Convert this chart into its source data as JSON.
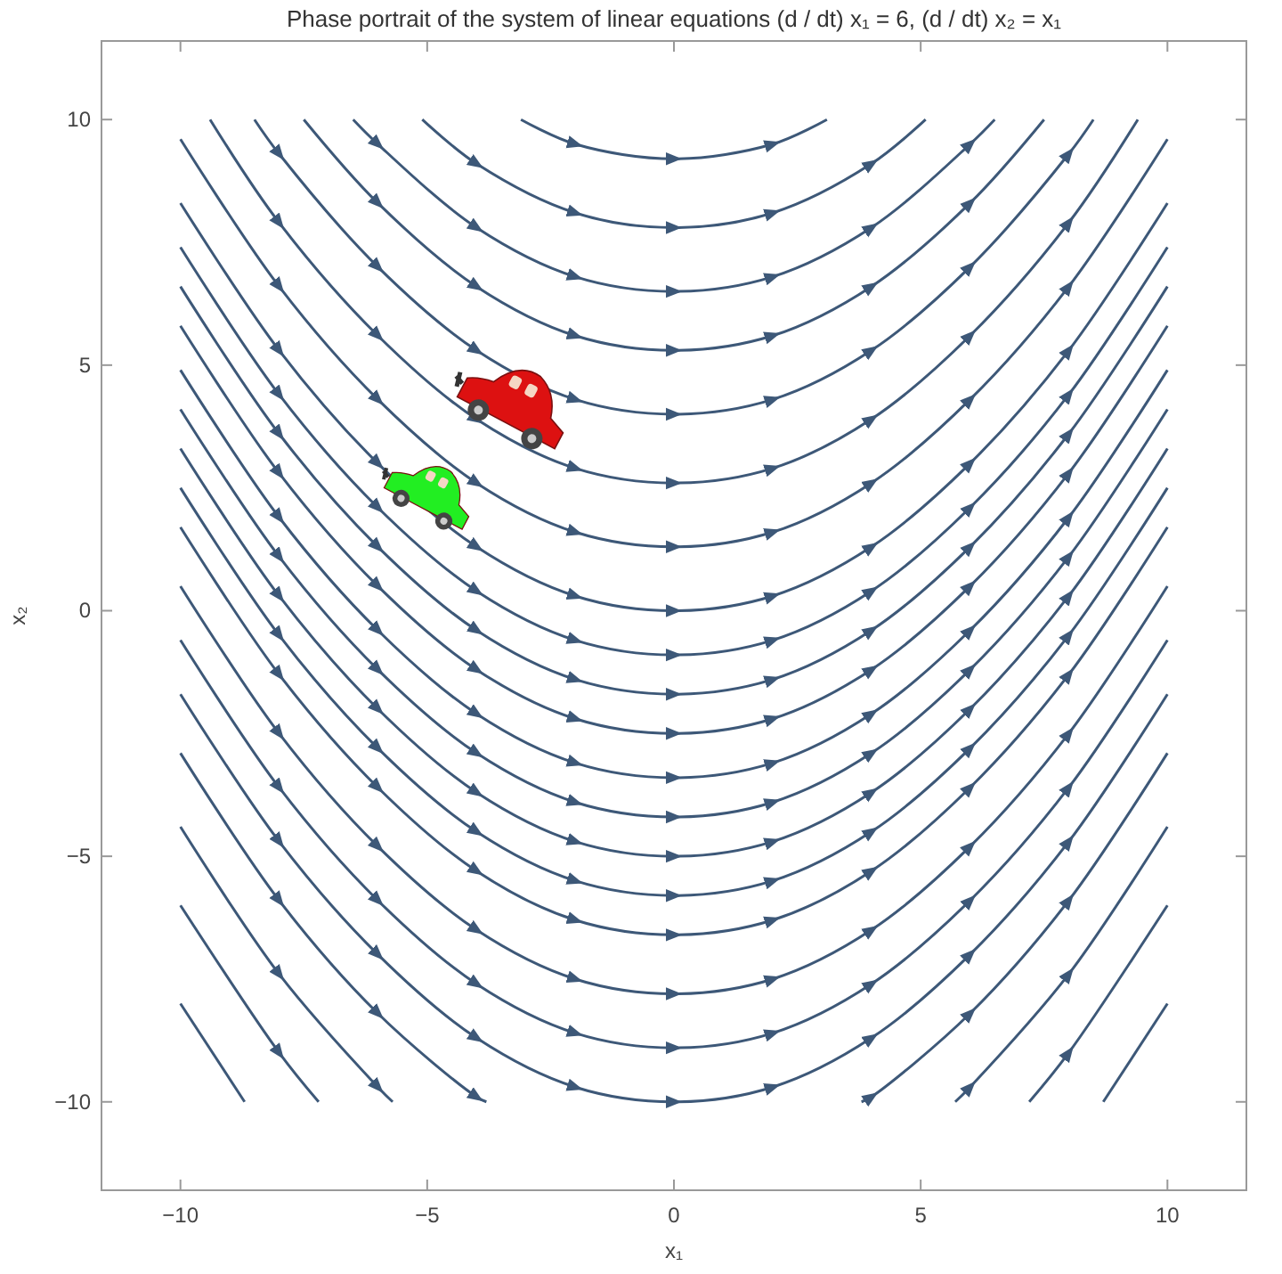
{
  "chart_data": {
    "type": "line",
    "title": "Phase portrait of the system of linear equations (d / dt) x₁ = 6, (d / dt) x₂ = x₁",
    "xlabel": "x₁",
    "ylabel": "x₂",
    "xlim": [
      -11.6,
      11.6
    ],
    "ylim": [
      -11.8,
      11.6
    ],
    "xticks": [
      -10,
      -5,
      0,
      5,
      10
    ],
    "yticks": [
      -10,
      -5,
      0,
      5,
      10
    ],
    "series": [
      {
        "color": "#3d5878",
        "x": [
          -3.1,
          -2,
          0,
          2,
          3.1
        ],
        "values": [
          10,
          9.5,
          9.2,
          9.5,
          10
        ]
      },
      {
        "color": "#3d5878",
        "x": [
          -5.1,
          -4,
          -2,
          0,
          2,
          4,
          5.1
        ],
        "values": [
          10,
          9.1,
          8.1,
          7.8,
          8.1,
          9.1,
          10
        ]
      },
      {
        "color": "#3d5878",
        "x": [
          -6.5,
          -6,
          -4,
          -2,
          0,
          2,
          4,
          6,
          6.5
        ],
        "values": [
          10,
          9.5,
          7.8,
          6.8,
          6.5,
          6.8,
          7.8,
          9.5,
          10
        ]
      },
      {
        "color": "#3d5878",
        "x": [
          -7.5,
          -6,
          -4,
          -2,
          0,
          2,
          4,
          6,
          7.5
        ],
        "values": [
          10,
          8.3,
          6.6,
          5.6,
          5.3,
          5.6,
          6.6,
          8.3,
          10
        ]
      },
      {
        "color": "#3d5878",
        "x": [
          -8.5,
          -8,
          -6,
          -4,
          -2,
          0,
          2,
          4,
          6,
          8,
          8.5
        ],
        "values": [
          10,
          9.3,
          7,
          5.3,
          4.3,
          4,
          4.3,
          5.3,
          7,
          9.3,
          10
        ]
      },
      {
        "color": "#3d5878",
        "x": [
          -9.4,
          -8,
          -6,
          -4,
          -2,
          0,
          2,
          4,
          6,
          8,
          9.4
        ],
        "values": [
          10,
          7.9,
          5.6,
          3.9,
          2.9,
          2.6,
          2.9,
          3.9,
          5.6,
          7.9,
          10
        ]
      },
      {
        "color": "#3d5878",
        "x": [
          -10,
          -8,
          -6,
          -4,
          -2,
          0,
          2,
          4,
          6,
          8,
          10
        ],
        "values": [
          9.6,
          6.6,
          4.3,
          2.6,
          1.6,
          1.3,
          1.6,
          2.6,
          4.3,
          6.6,
          9.6
        ]
      },
      {
        "color": "#3d5878",
        "x": [
          -10,
          -8,
          -6,
          -4,
          -2,
          0,
          2,
          4,
          6,
          8,
          10
        ],
        "values": [
          8.3,
          5.3,
          3,
          1.3,
          0.3,
          0,
          0.3,
          1.3,
          3,
          5.3,
          8.3
        ]
      },
      {
        "color": "#3d5878",
        "x": [
          -10,
          -8,
          -6,
          -4,
          -2,
          0,
          2,
          4,
          6,
          8,
          10
        ],
        "values": [
          7.4,
          4.4,
          2.1,
          0.4,
          -0.6,
          -0.9,
          -0.6,
          0.4,
          2.1,
          4.4,
          7.4
        ]
      },
      {
        "color": "#3d5878",
        "x": [
          -10,
          -8,
          -6,
          -4,
          -2,
          0,
          2,
          4,
          6,
          8,
          10
        ],
        "values": [
          6.6,
          3.6,
          1.3,
          -0.4,
          -1.4,
          -1.7,
          -1.4,
          -0.4,
          1.3,
          3.6,
          6.6
        ]
      },
      {
        "color": "#3d5878",
        "x": [
          -10,
          -8,
          -6,
          -4,
          -2,
          0,
          2,
          4,
          6,
          8,
          10
        ],
        "values": [
          5.8,
          2.8,
          0.5,
          -1.2,
          -2.2,
          -2.5,
          -2.2,
          -1.2,
          0.5,
          2.8,
          5.8
        ]
      },
      {
        "color": "#3d5878",
        "x": [
          -10,
          -8,
          -6,
          -4,
          -2,
          0,
          2,
          4,
          6,
          8,
          10
        ],
        "values": [
          4.9,
          1.9,
          -0.4,
          -2.1,
          -3.1,
          -3.4,
          -3.1,
          -2.1,
          -0.4,
          1.9,
          4.9
        ]
      },
      {
        "color": "#3d5878",
        "x": [
          -10,
          -8,
          -6,
          -4,
          -2,
          0,
          2,
          4,
          6,
          8,
          10
        ],
        "values": [
          4.1,
          1.1,
          -1.2,
          -2.9,
          -3.9,
          -4.2,
          -3.9,
          -2.9,
          -1.2,
          1.1,
          4.1
        ]
      },
      {
        "color": "#3d5878",
        "x": [
          -10,
          -8,
          -6,
          -4,
          -2,
          0,
          2,
          4,
          6,
          8,
          10
        ],
        "values": [
          3.3,
          0.3,
          -2,
          -3.7,
          -4.7,
          -5,
          -4.7,
          -3.7,
          -2,
          0.3,
          3.3
        ]
      },
      {
        "color": "#3d5878",
        "x": [
          -10,
          -8,
          -6,
          -4,
          -2,
          0,
          2,
          4,
          6,
          8,
          10
        ],
        "values": [
          2.5,
          -0.5,
          -2.8,
          -4.5,
          -5.5,
          -5.8,
          -5.5,
          -4.5,
          -2.8,
          -0.5,
          2.5
        ]
      },
      {
        "color": "#3d5878",
        "x": [
          -10,
          -8,
          -6,
          -4,
          -2,
          0,
          2,
          4,
          6,
          8,
          10
        ],
        "values": [
          1.7,
          -1.3,
          -3.6,
          -5.3,
          -6.3,
          -6.6,
          -6.3,
          -5.3,
          -3.6,
          -1.3,
          1.7
        ]
      },
      {
        "color": "#3d5878",
        "x": [
          -10,
          -8,
          -6,
          -4,
          -2,
          0,
          2,
          4,
          6,
          8,
          10
        ],
        "values": [
          0.5,
          -2.5,
          -4.8,
          -6.5,
          -7.5,
          -7.8,
          -7.5,
          -6.5,
          -4.8,
          -2.5,
          0.5
        ]
      },
      {
        "color": "#3d5878",
        "x": [
          -10,
          -8,
          -6,
          -4,
          -2,
          0,
          2,
          4,
          6,
          8,
          10
        ],
        "values": [
          -0.6,
          -3.6,
          -5.9,
          -7.6,
          -8.6,
          -8.9,
          -8.6,
          -7.6,
          -5.9,
          -3.6,
          -0.6
        ]
      },
      {
        "color": "#3d5878",
        "x": [
          -10,
          -8,
          -6,
          -4,
          -2,
          0,
          2,
          4,
          6,
          8,
          10
        ],
        "values": [
          -1.7,
          -4.7,
          -7,
          -8.7,
          -9.7,
          -10,
          -9.7,
          -8.7,
          -7,
          -4.7,
          -1.7
        ]
      },
      {
        "color": "#3d5878",
        "x": [
          -10,
          -8,
          -6,
          -4,
          -3.8
        ],
        "values": [
          -2.9,
          -5.9,
          -8.2,
          -9.9,
          -10
        ]
      },
      {
        "color": "#3d5878",
        "x": [
          3.8,
          4,
          6,
          8,
          10
        ],
        "values": [
          -10,
          -9.9,
          -8.2,
          -5.9,
          -2.9
        ]
      },
      {
        "color": "#3d5878",
        "x": [
          -10,
          -8,
          -6,
          -5.7
        ],
        "values": [
          -4.4,
          -7.4,
          -9.7,
          -10
        ]
      },
      {
        "color": "#3d5878",
        "x": [
          5.7,
          6,
          8,
          10
        ],
        "values": [
          -10,
          -9.7,
          -7.4,
          -4.4
        ]
      },
      {
        "color": "#3d5878",
        "x": [
          -10,
          -8,
          -7.2
        ],
        "values": [
          -6,
          -9,
          -10
        ]
      },
      {
        "color": "#3d5878",
        "x": [
          7.2,
          8,
          10
        ],
        "values": [
          -10,
          -9,
          -6
        ]
      },
      {
        "color": "#3d5878",
        "x": [
          -10,
          -8.7
        ],
        "values": [
          -8,
          -10
        ]
      },
      {
        "color": "#3d5878",
        "x": [
          8.7,
          10
        ],
        "values": [
          -10,
          -8
        ]
      }
    ]
  }
}
